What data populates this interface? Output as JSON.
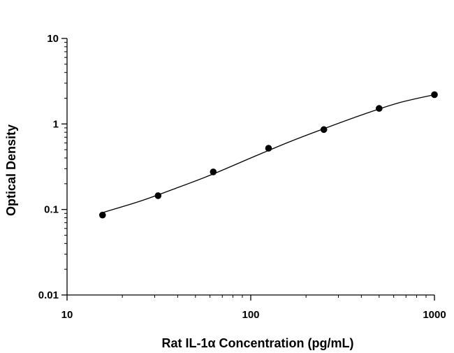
{
  "chart_data": {
    "type": "scatter",
    "title": "",
    "xlabel": "Rat IL-1α Concentration (pg/mL)",
    "ylabel": "Optical Density",
    "xscale": "log",
    "yscale": "log",
    "xlim": [
      10,
      1000
    ],
    "ylim": [
      0.01,
      10
    ],
    "x_ticks": [
      10,
      100,
      1000
    ],
    "x_tick_labels": [
      "10",
      "100",
      "1000"
    ],
    "y_ticks": [
      0.01,
      0.1,
      1,
      10
    ],
    "y_tick_labels": [
      "0.01",
      "0.1",
      "1",
      "10"
    ],
    "grid": false,
    "legend": "none",
    "marker_color": "#000000",
    "line_color": "#000000",
    "series": [
      {
        "points": [
          {
            "x": 15.6,
            "y": 0.086
          },
          {
            "x": 31.3,
            "y": 0.145
          },
          {
            "x": 62.5,
            "y": 0.275
          },
          {
            "x": 125,
            "y": 0.52
          },
          {
            "x": 250,
            "y": 0.86
          },
          {
            "x": 500,
            "y": 1.52
          },
          {
            "x": 1000,
            "y": 2.2
          }
        ],
        "fit_curve": [
          {
            "x": 15.6,
            "y": 0.092
          },
          {
            "x": 25,
            "y": 0.125
          },
          {
            "x": 40,
            "y": 0.18
          },
          {
            "x": 62.5,
            "y": 0.26
          },
          {
            "x": 100,
            "y": 0.4
          },
          {
            "x": 160,
            "y": 0.61
          },
          {
            "x": 250,
            "y": 0.88
          },
          {
            "x": 400,
            "y": 1.27
          },
          {
            "x": 630,
            "y": 1.75
          },
          {
            "x": 1000,
            "y": 2.2
          }
        ]
      }
    ]
  }
}
